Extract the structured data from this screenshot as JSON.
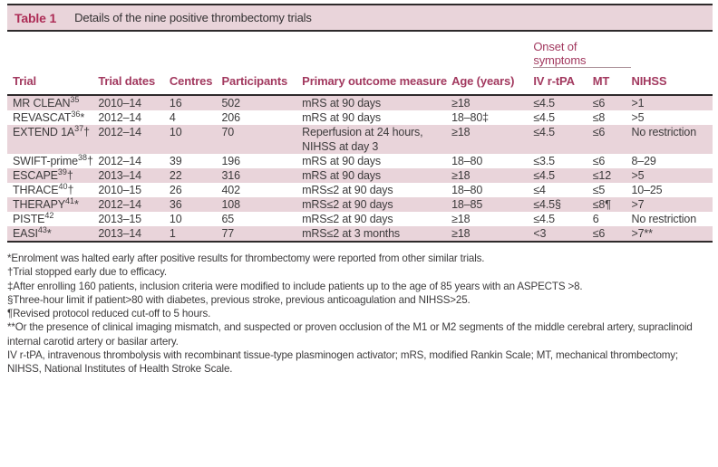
{
  "title_bar": {
    "label": "Table 1",
    "caption": "Details of the nine positive thrombectomy trials"
  },
  "table": {
    "group_header": "Onset of symptoms",
    "columns": [
      "Trial",
      "Trial dates",
      "Centres",
      "Participants",
      "Primary outcome measure",
      "Age (years)",
      "IV r-tPA",
      "MT",
      "NIHSS"
    ],
    "rows": [
      {
        "trial": "MR CLEAN",
        "ref": "35",
        "flag": "",
        "dates": "2010–14",
        "centres": "16",
        "participants": "502",
        "outcome": "mRS at 90 days",
        "age": "≥18",
        "iv_rtpa": "≤4.5",
        "mt": "≤6",
        "nihss": ">1",
        "shaded": true
      },
      {
        "trial": "REVASCAT",
        "ref": "36",
        "flag": "*",
        "dates": "2012–14",
        "centres": "4",
        "participants": "206",
        "outcome": "mRS at 90 days",
        "age": "18–80‡",
        "iv_rtpa": "≤4.5",
        "mt": "≤8",
        "nihss": ">5",
        "shaded": false
      },
      {
        "trial": "EXTEND 1A",
        "ref": "37",
        "flag": "†",
        "dates": "2012–14",
        "centres": "10",
        "participants": "70",
        "outcome": "Reperfusion at 24 hours,\nNIHSS at day 3",
        "age": "≥18",
        "iv_rtpa": "≤4.5",
        "mt": "≤6",
        "nihss": "No restriction",
        "shaded": true
      },
      {
        "trial": "SWIFT-prime",
        "ref": "38",
        "flag": "†",
        "dates": "2012–14",
        "centres": "39",
        "participants": "196",
        "outcome": "mRS at 90 days",
        "age": "18–80",
        "iv_rtpa": "≤3.5",
        "mt": "≤6",
        "nihss": "8–29",
        "shaded": false
      },
      {
        "trial": "ESCAPE",
        "ref": "39",
        "flag": "†",
        "dates": "2013–14",
        "centres": "22",
        "participants": "316",
        "outcome": "mRS at 90 days",
        "age": "≥18",
        "iv_rtpa": "≤4.5",
        "mt": "≤12",
        "nihss": ">5",
        "shaded": true
      },
      {
        "trial": "THRACE",
        "ref": "40",
        "flag": "†",
        "dates": "2010–15",
        "centres": "26",
        "participants": "402",
        "outcome": "mRS≤2 at 90 days",
        "age": "18–80",
        "iv_rtpa": "≤4",
        "mt": "≤5",
        "nihss": "10–25",
        "shaded": false
      },
      {
        "trial": "THERAPY",
        "ref": "41",
        "flag": "*",
        "dates": "2012–14",
        "centres": "36",
        "participants": "108",
        "outcome": "mRS≤2 at 90 days",
        "age": "18–85",
        "iv_rtpa": "≤4.5§",
        "mt": "≤8¶",
        "nihss": ">7",
        "shaded": true
      },
      {
        "trial": "PISTE",
        "ref": "42",
        "flag": "",
        "dates": "2013–15",
        "centres": "10",
        "participants": "65",
        "outcome": "mRS≤2 at 90 days",
        "age": "≥18",
        "iv_rtpa": "≤4.5",
        "mt": "6",
        "nihss": "No restriction",
        "shaded": false
      },
      {
        "trial": "EASI",
        "ref": "43",
        "flag": "*",
        "dates": "2013–14",
        "centres": "1",
        "participants": "77",
        "outcome": "mRS≤2 at 3 months",
        "age": "≥18",
        "iv_rtpa": "<3",
        "mt": "≤6",
        "nihss": ">7**",
        "shaded": true
      }
    ]
  },
  "footnotes": [
    "*Enrolment was halted early after positive results for thrombectomy were reported from other similar trials.",
    "†Trial stopped early due to efficacy.",
    "‡After enrolling 160 patients, inclusion criteria were modified to include patients up to the age of 85 years with an ASPECTS >8.",
    "§Three-hour limit if patient>80 with diabetes, previous stroke, previous anticoagulation and NIHSS>25.",
    "¶Revised protocol reduced cut-off to 5 hours.",
    "**Or the presence of clinical imaging mismatch, and suspected or proven occlusion of the M1 or M2 segments of the middle cerebral artery, supraclinoid internal carotid artery or basilar artery.",
    "IV r-tPA, intravenous thrombolysis with recombinant tissue-type plasminogen activator; mRS, modified Rankin Scale; MT, mechanical thrombectomy; NIHSS, National Institutes of Health Stroke Scale."
  ],
  "colors": {
    "pink_band": "#e9d4da",
    "maroon_header": "#a2395f",
    "title_accent": "#ad2c56",
    "rule_dark": "#2e2a2b",
    "body_text": "#3d3b3c"
  }
}
